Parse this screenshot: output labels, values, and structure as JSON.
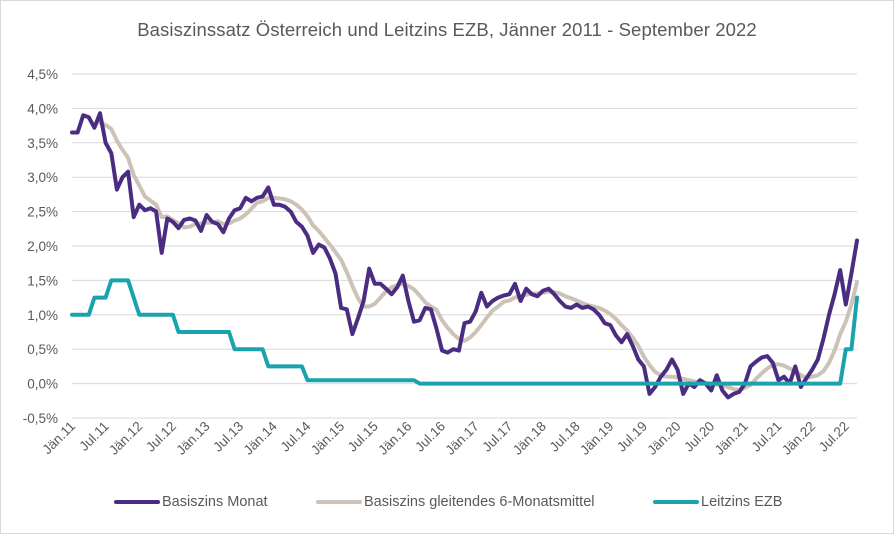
{
  "chart_data": {
    "type": "line",
    "title": "Basiszinssatz Österreich und Leitzins EZB, Jänner 2011 - September 2022",
    "xlabel": "",
    "ylabel": "",
    "ylim": [
      -0.5,
      4.5
    ],
    "y_ticks": [
      "-0,5%",
      "0,0%",
      "0,5%",
      "1,0%",
      "1,5%",
      "2,0%",
      "2,5%",
      "3,0%",
      "3,5%",
      "4,0%",
      "4,5%"
    ],
    "y_tick_values": [
      -0.5,
      0,
      0.5,
      1.0,
      1.5,
      2.0,
      2.5,
      3.0,
      3.5,
      4.0,
      4.5
    ],
    "x_ticks": [
      "Jän.11",
      "Jul.11",
      "Jän.12",
      "Jul.12",
      "Jän.13",
      "Jul.13",
      "Jän.14",
      "Jul.14",
      "Jän.15",
      "Jul.15",
      "Jän.16",
      "Jul.16",
      "Jän.17",
      "Jul.17",
      "Jän.18",
      "Jul.18",
      "Jän.19",
      "Jul.19",
      "Jän.20",
      "Jul.20",
      "Jän.21",
      "Jul.21",
      "Jän.22",
      "Jul.22"
    ],
    "x_tick_months": [
      0,
      6,
      12,
      18,
      24,
      30,
      36,
      42,
      48,
      54,
      60,
      66,
      72,
      78,
      84,
      90,
      96,
      102,
      108,
      114,
      120,
      126,
      132,
      138
    ],
    "x_range_months": [
      0,
      140
    ],
    "grid": "horizontal",
    "legend_position": "bottom",
    "series": [
      {
        "name": "Basiszins Monat",
        "color": "#4b2c83",
        "points": [
          [
            0,
            3.65
          ],
          [
            1,
            3.65
          ],
          [
            2,
            3.9
          ],
          [
            3,
            3.87
          ],
          [
            4,
            3.72
          ],
          [
            5,
            3.93
          ],
          [
            6,
            3.5
          ],
          [
            7,
            3.35
          ],
          [
            8,
            2.82
          ],
          [
            9,
            3.0
          ],
          [
            10,
            3.08
          ],
          [
            11,
            2.42
          ],
          [
            12,
            2.6
          ],
          [
            13,
            2.52
          ],
          [
            14,
            2.55
          ],
          [
            15,
            2.5
          ],
          [
            16,
            1.9
          ],
          [
            17,
            2.4
          ],
          [
            18,
            2.35
          ],
          [
            19,
            2.26
          ],
          [
            20,
            2.38
          ],
          [
            21,
            2.4
          ],
          [
            22,
            2.37
          ],
          [
            23,
            2.22
          ],
          [
            24,
            2.45
          ],
          [
            25,
            2.35
          ],
          [
            26,
            2.32
          ],
          [
            27,
            2.2
          ],
          [
            28,
            2.4
          ],
          [
            29,
            2.52
          ],
          [
            30,
            2.55
          ],
          [
            31,
            2.7
          ],
          [
            32,
            2.65
          ],
          [
            33,
            2.7
          ],
          [
            34,
            2.72
          ],
          [
            35,
            2.85
          ],
          [
            36,
            2.6
          ],
          [
            37,
            2.6
          ],
          [
            38,
            2.57
          ],
          [
            39,
            2.5
          ],
          [
            40,
            2.35
          ],
          [
            41,
            2.28
          ],
          [
            42,
            2.15
          ],
          [
            43,
            1.9
          ],
          [
            44,
            2.02
          ],
          [
            45,
            1.98
          ],
          [
            46,
            1.82
          ],
          [
            47,
            1.6
          ],
          [
            48,
            1.1
          ],
          [
            49,
            1.08
          ],
          [
            50,
            0.72
          ],
          [
            51,
            0.95
          ],
          [
            52,
            1.2
          ],
          [
            53,
            1.67
          ],
          [
            54,
            1.45
          ],
          [
            55,
            1.45
          ],
          [
            56,
            1.38
          ],
          [
            57,
            1.3
          ],
          [
            58,
            1.4
          ],
          [
            59,
            1.57
          ],
          [
            60,
            1.2
          ],
          [
            61,
            0.9
          ],
          [
            62,
            0.92
          ],
          [
            63,
            1.1
          ],
          [
            64,
            1.08
          ],
          [
            65,
            0.8
          ],
          [
            66,
            0.48
          ],
          [
            67,
            0.45
          ],
          [
            68,
            0.5
          ],
          [
            69,
            0.48
          ],
          [
            70,
            0.88
          ],
          [
            71,
            0.9
          ],
          [
            72,
            1.05
          ],
          [
            73,
            1.32
          ],
          [
            74,
            1.12
          ],
          [
            75,
            1.2
          ],
          [
            76,
            1.25
          ],
          [
            77,
            1.28
          ],
          [
            78,
            1.3
          ],
          [
            79,
            1.45
          ],
          [
            80,
            1.2
          ],
          [
            81,
            1.38
          ],
          [
            82,
            1.3
          ],
          [
            83,
            1.27
          ],
          [
            84,
            1.35
          ],
          [
            85,
            1.38
          ],
          [
            86,
            1.3
          ],
          [
            87,
            1.2
          ],
          [
            88,
            1.12
          ],
          [
            89,
            1.1
          ],
          [
            90,
            1.15
          ],
          [
            91,
            1.1
          ],
          [
            92,
            1.12
          ],
          [
            93,
            1.08
          ],
          [
            94,
            1.0
          ],
          [
            95,
            0.88
          ],
          [
            96,
            0.85
          ],
          [
            97,
            0.7
          ],
          [
            98,
            0.6
          ],
          [
            99,
            0.72
          ],
          [
            100,
            0.55
          ],
          [
            101,
            0.35
          ],
          [
            102,
            0.25
          ],
          [
            103,
            -0.15
          ],
          [
            104,
            -0.05
          ],
          [
            105,
            0.1
          ],
          [
            106,
            0.2
          ],
          [
            107,
            0.35
          ],
          [
            108,
            0.2
          ],
          [
            109,
            -0.15
          ],
          [
            110,
            0.0
          ],
          [
            111,
            -0.05
          ],
          [
            112,
            0.05
          ],
          [
            113,
            0.0
          ],
          [
            114,
            -0.1
          ],
          [
            115,
            0.12
          ],
          [
            116,
            -0.1
          ],
          [
            117,
            -0.2
          ],
          [
            118,
            -0.15
          ],
          [
            119,
            -0.12
          ],
          [
            120,
            0.0
          ],
          [
            121,
            0.25
          ],
          [
            122,
            0.32
          ],
          [
            123,
            0.38
          ],
          [
            124,
            0.4
          ],
          [
            125,
            0.3
          ],
          [
            126,
            0.05
          ],
          [
            127,
            0.1
          ],
          [
            128,
            0.0
          ],
          [
            129,
            0.25
          ],
          [
            130,
            -0.05
          ],
          [
            131,
            0.08
          ],
          [
            132,
            0.2
          ],
          [
            133,
            0.35
          ],
          [
            134,
            0.65
          ],
          [
            135,
            1.0
          ],
          [
            136,
            1.3
          ],
          [
            137,
            1.65
          ],
          [
            138,
            1.15
          ],
          [
            139,
            1.6
          ],
          [
            140,
            2.08
          ]
        ]
      },
      {
        "name": "Basiszins gleitendes 6-Monatsmittel",
        "color": "#cdc2b7",
        "points": [
          [
            5,
            3.79
          ],
          [
            6,
            3.76
          ],
          [
            7,
            3.7
          ],
          [
            8,
            3.53
          ],
          [
            9,
            3.4
          ],
          [
            10,
            3.28
          ],
          [
            11,
            3.03
          ],
          [
            12,
            2.88
          ],
          [
            13,
            2.72
          ],
          [
            14,
            2.66
          ],
          [
            15,
            2.6
          ],
          [
            16,
            2.42
          ],
          [
            17,
            2.43
          ],
          [
            18,
            2.38
          ],
          [
            19,
            2.33
          ],
          [
            20,
            2.27
          ],
          [
            21,
            2.28
          ],
          [
            22,
            2.32
          ],
          [
            23,
            2.33
          ],
          [
            24,
            2.34
          ],
          [
            25,
            2.34
          ],
          [
            26,
            2.36
          ],
          [
            27,
            2.32
          ],
          [
            28,
            2.33
          ],
          [
            29,
            2.37
          ],
          [
            30,
            2.4
          ],
          [
            31,
            2.46
          ],
          [
            32,
            2.54
          ],
          [
            33,
            2.63
          ],
          [
            34,
            2.65
          ],
          [
            35,
            2.7
          ],
          [
            36,
            2.7
          ],
          [
            37,
            2.69
          ],
          [
            38,
            2.68
          ],
          [
            39,
            2.65
          ],
          [
            40,
            2.6
          ],
          [
            41,
            2.53
          ],
          [
            42,
            2.43
          ],
          [
            43,
            2.3
          ],
          [
            44,
            2.22
          ],
          [
            45,
            2.12
          ],
          [
            46,
            2.02
          ],
          [
            47,
            1.91
          ],
          [
            48,
            1.8
          ],
          [
            49,
            1.62
          ],
          [
            50,
            1.42
          ],
          [
            51,
            1.24
          ],
          [
            52,
            1.12
          ],
          [
            53,
            1.12
          ],
          [
            54,
            1.16
          ],
          [
            55,
            1.25
          ],
          [
            56,
            1.34
          ],
          [
            57,
            1.4
          ],
          [
            58,
            1.43
          ],
          [
            59,
            1.45
          ],
          [
            60,
            1.42
          ],
          [
            61,
            1.37
          ],
          [
            62,
            1.28
          ],
          [
            63,
            1.18
          ],
          [
            64,
            1.12
          ],
          [
            65,
            1.07
          ],
          [
            66,
            0.92
          ],
          [
            67,
            0.81
          ],
          [
            68,
            0.72
          ],
          [
            69,
            0.65
          ],
          [
            70,
            0.62
          ],
          [
            71,
            0.67
          ],
          [
            72,
            0.75
          ],
          [
            73,
            0.85
          ],
          [
            74,
            0.96
          ],
          [
            75,
            1.06
          ],
          [
            76,
            1.12
          ],
          [
            77,
            1.19
          ],
          [
            78,
            1.21
          ],
          [
            79,
            1.25
          ],
          [
            80,
            1.27
          ],
          [
            81,
            1.29
          ],
          [
            82,
            1.31
          ],
          [
            83,
            1.31
          ],
          [
            84,
            1.32
          ],
          [
            85,
            1.34
          ],
          [
            86,
            1.33
          ],
          [
            87,
            1.31
          ],
          [
            88,
            1.27
          ],
          [
            89,
            1.24
          ],
          [
            90,
            1.21
          ],
          [
            91,
            1.17
          ],
          [
            92,
            1.14
          ],
          [
            93,
            1.12
          ],
          [
            94,
            1.1
          ],
          [
            95,
            1.06
          ],
          [
            96,
            1.01
          ],
          [
            97,
            0.94
          ],
          [
            98,
            0.85
          ],
          [
            99,
            0.77
          ],
          [
            100,
            0.67
          ],
          [
            101,
            0.55
          ],
          [
            102,
            0.39
          ],
          [
            103,
            0.27
          ],
          [
            104,
            0.17
          ],
          [
            105,
            0.12
          ],
          [
            106,
            0.1
          ],
          [
            107,
            0.1
          ],
          [
            108,
            0.09
          ],
          [
            109,
            0.07
          ],
          [
            110,
            0.05
          ],
          [
            111,
            0.03
          ],
          [
            112,
            0.02
          ],
          [
            113,
            0.01
          ],
          [
            114,
            0.0
          ],
          [
            115,
            -0.01
          ],
          [
            116,
            -0.03
          ],
          [
            117,
            -0.05
          ],
          [
            118,
            -0.08
          ],
          [
            119,
            -0.09
          ],
          [
            120,
            -0.06
          ],
          [
            121,
            -0.02
          ],
          [
            122,
            0.07
          ],
          [
            123,
            0.15
          ],
          [
            124,
            0.22
          ],
          [
            125,
            0.27
          ],
          [
            126,
            0.28
          ],
          [
            127,
            0.26
          ],
          [
            128,
            0.22
          ],
          [
            129,
            0.18
          ],
          [
            130,
            0.12
          ],
          [
            131,
            0.08
          ],
          [
            132,
            0.1
          ],
          [
            133,
            0.12
          ],
          [
            134,
            0.18
          ],
          [
            135,
            0.3
          ],
          [
            136,
            0.48
          ],
          [
            137,
            0.72
          ],
          [
            138,
            0.9
          ],
          [
            139,
            1.15
          ],
          [
            140,
            1.48
          ]
        ]
      },
      {
        "name": "Leitzins EZB",
        "color": "#1aa3ad",
        "points": [
          [
            0,
            1.0
          ],
          [
            3,
            1.0
          ],
          [
            4,
            1.25
          ],
          [
            6,
            1.25
          ],
          [
            7,
            1.5
          ],
          [
            10,
            1.5
          ],
          [
            11,
            1.25
          ],
          [
            12,
            1.0
          ],
          [
            18,
            1.0
          ],
          [
            19,
            0.75
          ],
          [
            28,
            0.75
          ],
          [
            29,
            0.5
          ],
          [
            34,
            0.5
          ],
          [
            35,
            0.25
          ],
          [
            41,
            0.25
          ],
          [
            42,
            0.05
          ],
          [
            61,
            0.05
          ],
          [
            62,
            0.0
          ],
          [
            137,
            0.0
          ],
          [
            138,
            0.5
          ],
          [
            139,
            0.5
          ],
          [
            140,
            1.25
          ]
        ]
      }
    ]
  }
}
